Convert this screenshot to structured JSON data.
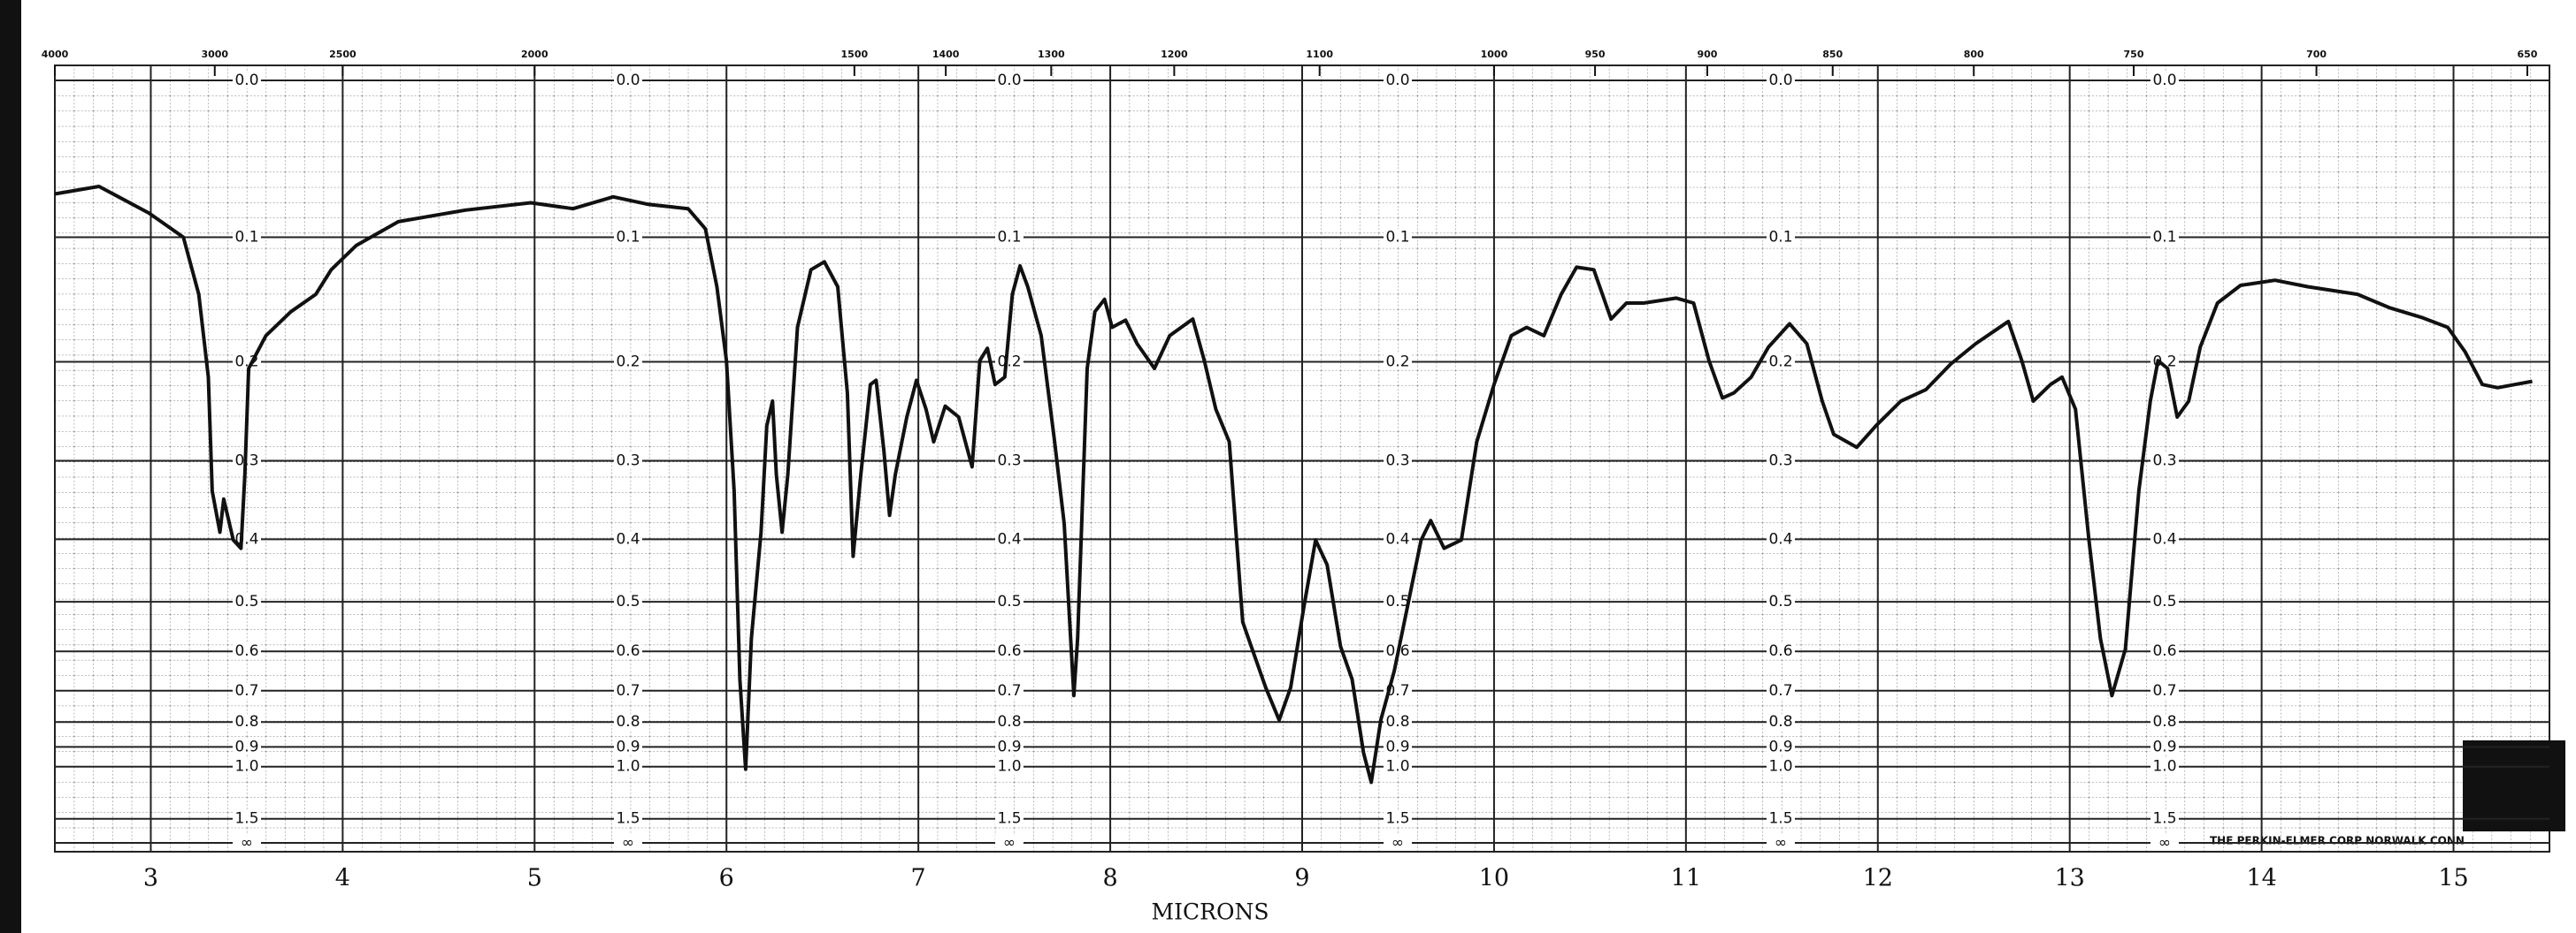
{
  "chart_data": {
    "type": "line",
    "xlabel": "MICRONS",
    "annotation": "THE PERKIN-ELMER CORP NORWALK CONN",
    "color": "#111111",
    "xlim": [
      2.5,
      15.5
    ],
    "xticks": [
      3,
      4,
      5,
      6,
      7,
      8,
      9,
      10,
      11,
      12,
      13,
      14,
      15
    ],
    "x2ticks": [
      4000,
      3000,
      2500,
      2000,
      1500,
      1400,
      1300,
      1200,
      1100,
      1000,
      950,
      900,
      850,
      800,
      750,
      700,
      650
    ],
    "x2scale": "reciprocal",
    "yscale": "absorbance",
    "ylim": [
      0,
      null
    ],
    "yticks": [
      {
        "value": 0,
        "label": "0.0"
      },
      0.1,
      0.2,
      0.3,
      0.4,
      0.5,
      0.6,
      0.7,
      0.8,
      0.9,
      {
        "value": 1,
        "label": "1.0"
      },
      1.5,
      {
        "value": null,
        "label": "∞"
      }
    ],
    "grid": true,
    "x": [
      2.5,
      2.73,
      2.99,
      3.17,
      3.25,
      3.3,
      3.32,
      3.36,
      3.38,
      3.43,
      3.47,
      3.49,
      3.51,
      3.6,
      3.73,
      3.86,
      3.94,
      4.07,
      4.29,
      4.64,
      4.98,
      5.2,
      5.41,
      5.59,
      5.8,
      5.89,
      5.95,
      6.0,
      6.04,
      6.07,
      6.1,
      6.13,
      6.18,
      6.21,
      6.24,
      6.26,
      6.29,
      6.32,
      6.37,
      6.44,
      6.51,
      6.58,
      6.63,
      6.66,
      6.7,
      6.75,
      6.78,
      6.82,
      6.85,
      6.88,
      6.94,
      6.99,
      7.04,
      7.08,
      7.14,
      7.21,
      7.28,
      7.32,
      7.36,
      7.4,
      7.45,
      7.49,
      7.53,
      7.57,
      7.64,
      7.71,
      7.76,
      7.81,
      7.83,
      7.88,
      7.92,
      7.97,
      8.01,
      8.08,
      8.14,
      8.23,
      8.31,
      8.43,
      8.49,
      8.55,
      8.62,
      8.69,
      8.75,
      8.81,
      8.88,
      8.94,
      9.01,
      9.07,
      9.13,
      9.2,
      9.26,
      9.32,
      9.36,
      9.41,
      9.48,
      9.55,
      9.62,
      9.67,
      9.74,
      9.83,
      9.91,
      10.0,
      10.09,
      10.17,
      10.26,
      10.35,
      10.43,
      10.52,
      10.61,
      10.69,
      10.78,
      10.95,
      11.04,
      11.12,
      11.19,
      11.25,
      11.34,
      11.43,
      11.54,
      11.63,
      11.71,
      11.77,
      11.89,
      11.99,
      12.12,
      12.25,
      12.38,
      12.51,
      12.68,
      12.75,
      12.81,
      12.9,
      12.96,
      13.03,
      13.1,
      13.16,
      13.22,
      13.29,
      13.36,
      13.42,
      13.46,
      13.51,
      13.56,
      13.62,
      13.68,
      13.77,
      13.89,
      14.07,
      14.24,
      14.5,
      14.67,
      14.84,
      14.97,
      15.06,
      15.15,
      15.23,
      15.32,
      15.41
    ],
    "values": [
      0.07,
      0.065,
      0.083,
      0.1,
      0.143,
      0.214,
      0.336,
      0.39,
      0.346,
      0.401,
      0.413,
      0.316,
      0.206,
      0.177,
      0.157,
      0.143,
      0.124,
      0.106,
      0.089,
      0.081,
      0.076,
      0.08,
      0.072,
      0.077,
      0.08,
      0.094,
      0.137,
      0.199,
      0.336,
      0.669,
      1.015,
      0.571,
      0.39,
      0.262,
      0.237,
      0.316,
      0.39,
      0.316,
      0.17,
      0.124,
      0.118,
      0.137,
      0.229,
      0.425,
      0.316,
      0.221,
      0.217,
      0.288,
      0.367,
      0.316,
      0.253,
      0.217,
      0.245,
      0.279,
      0.242,
      0.253,
      0.307,
      0.199,
      0.188,
      0.221,
      0.214,
      0.143,
      0.121,
      0.137,
      0.177,
      0.279,
      0.378,
      0.714,
      0.571,
      0.206,
      0.157,
      0.147,
      0.17,
      0.164,
      0.184,
      0.206,
      0.177,
      0.163,
      0.199,
      0.245,
      0.279,
      0.538,
      0.608,
      0.691,
      0.793,
      0.691,
      0.507,
      0.401,
      0.438,
      0.589,
      0.668,
      0.928,
      1.1,
      0.793,
      0.647,
      0.507,
      0.401,
      0.374,
      0.413,
      0.401,
      0.279,
      0.221,
      0.177,
      0.17,
      0.177,
      0.143,
      0.122,
      0.124,
      0.163,
      0.15,
      0.15,
      0.146,
      0.15,
      0.199,
      0.234,
      0.229,
      0.214,
      0.187,
      0.167,
      0.184,
      0.237,
      0.271,
      0.285,
      0.262,
      0.237,
      0.226,
      0.202,
      0.184,
      0.165,
      0.199,
      0.237,
      0.221,
      0.214,
      0.245,
      0.401,
      0.572,
      0.714,
      0.595,
      0.336,
      0.237,
      0.199,
      0.206,
      0.253,
      0.237,
      0.187,
      0.15,
      0.136,
      0.132,
      0.137,
      0.143,
      0.154,
      0.162,
      0.17,
      0.191,
      0.221,
      0.224,
      0.221,
      0.218
    ]
  }
}
